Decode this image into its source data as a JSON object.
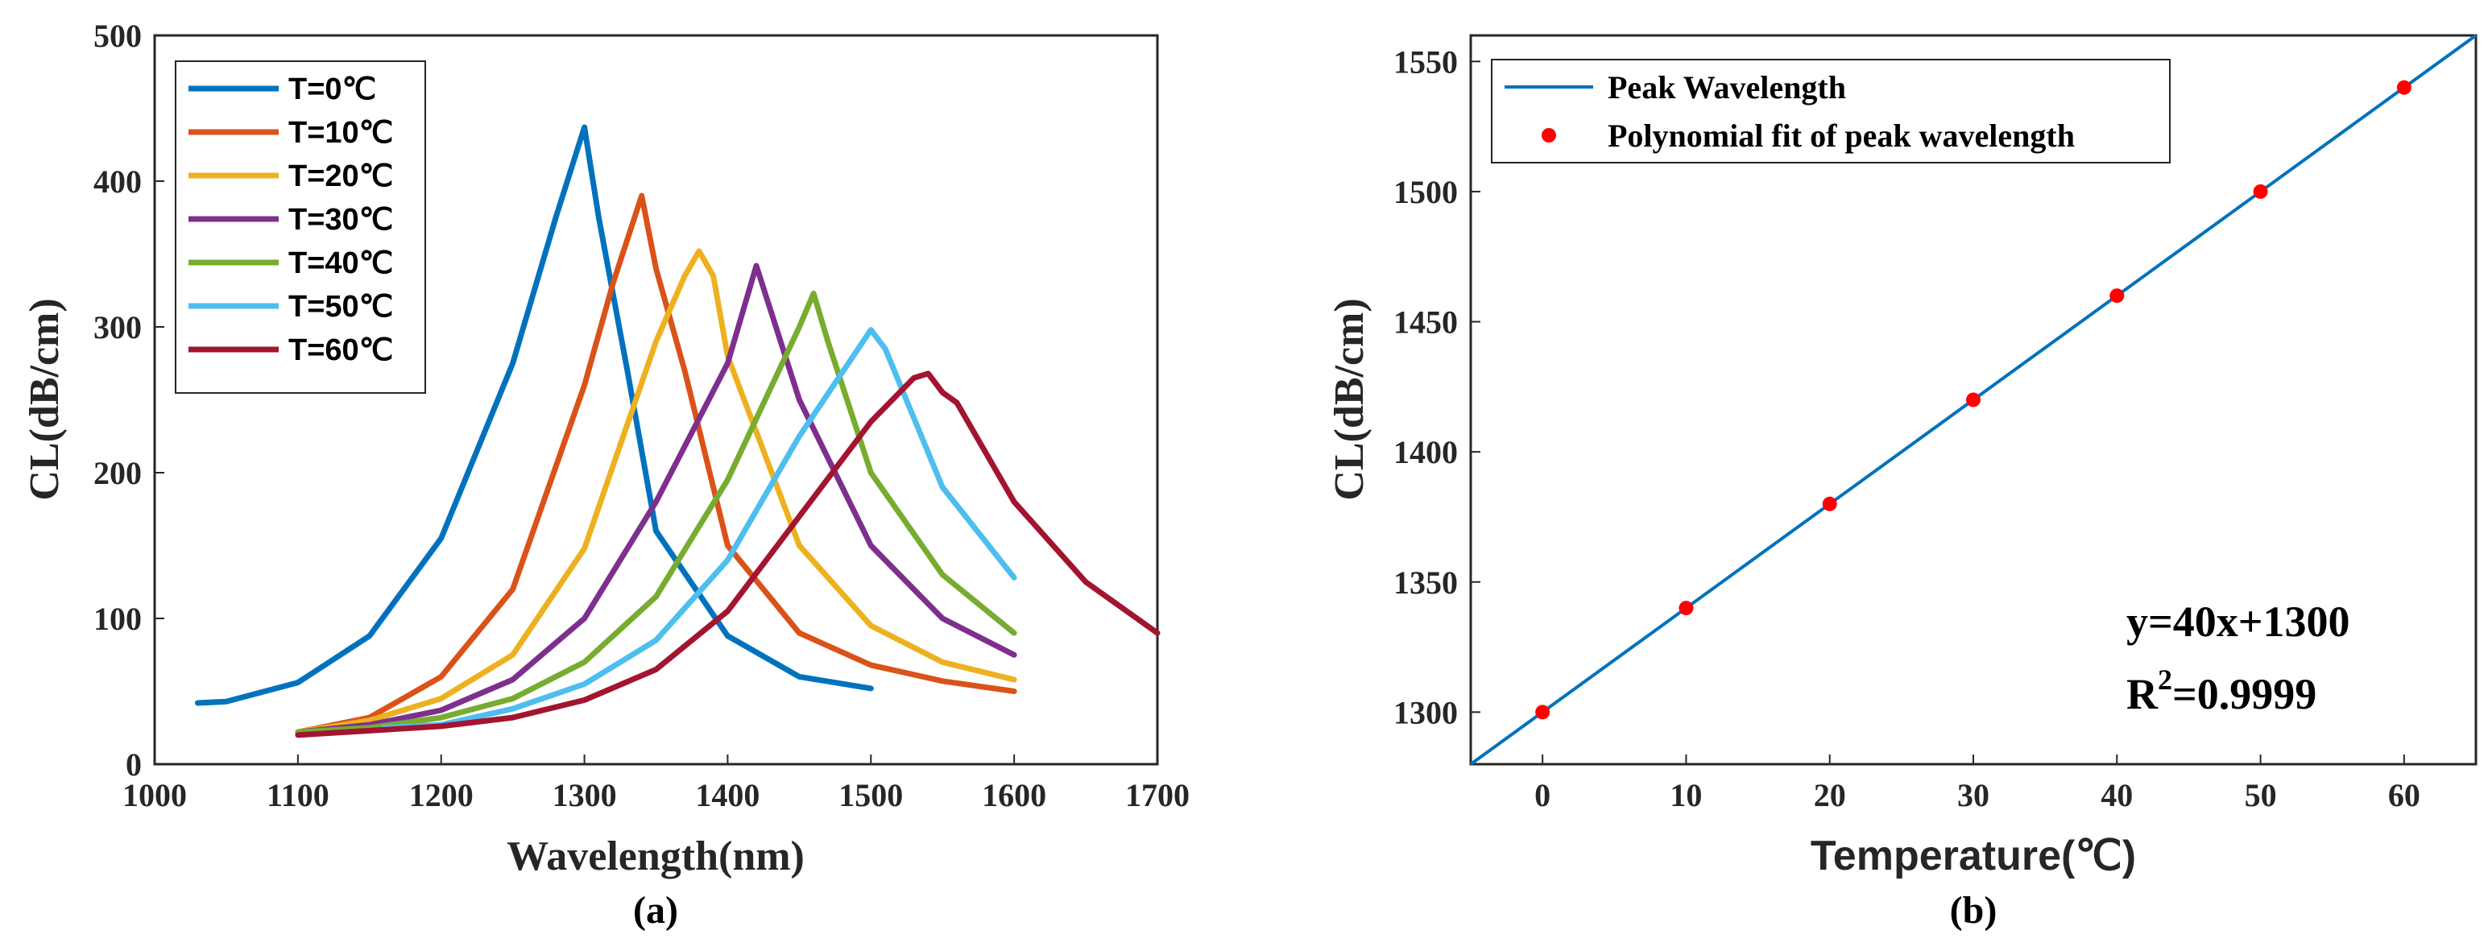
{
  "chart_data": [
    {
      "type": "line",
      "caption": "(a)",
      "xlabel": "Wavelength(nm)",
      "ylabel": "CL(dB/cm)",
      "xlim": [
        1000,
        1700
      ],
      "ylim": [
        0,
        500
      ],
      "xticks": [
        "1000",
        "1100",
        "1200",
        "1300",
        "1400",
        "1500",
        "1600",
        "1700"
      ],
      "yticks": [
        "0",
        "100",
        "200",
        "300",
        "400",
        "500"
      ],
      "legend_position": "top-left",
      "series": [
        {
          "name": "T=0℃",
          "color": "#0072BD",
          "x": [
            1030,
            1050,
            1100,
            1150,
            1200,
            1250,
            1280,
            1300,
            1310,
            1330,
            1350,
            1400,
            1450,
            1500
          ],
          "y": [
            42,
            43,
            56,
            88,
            155,
            275,
            375,
            437,
            375,
            270,
            160,
            88,
            60,
            52
          ]
        },
        {
          "name": "T=10℃",
          "color": "#D95319",
          "x": [
            1100,
            1150,
            1200,
            1250,
            1300,
            1320,
            1340,
            1350,
            1370,
            1400,
            1450,
            1500,
            1550,
            1600
          ],
          "y": [
            22,
            32,
            60,
            120,
            260,
            330,
            390,
            340,
            270,
            150,
            90,
            68,
            57,
            50
          ]
        },
        {
          "name": "T=20℃",
          "color": "#EDB120",
          "x": [
            1100,
            1150,
            1200,
            1250,
            1300,
            1350,
            1370,
            1380,
            1390,
            1400,
            1450,
            1500,
            1550,
            1600
          ],
          "y": [
            22,
            30,
            45,
            75,
            148,
            290,
            335,
            352,
            335,
            280,
            150,
            95,
            70,
            58
          ]
        },
        {
          "name": "T=30℃",
          "color": "#7E2F8E",
          "x": [
            1100,
            1150,
            1200,
            1250,
            1300,
            1350,
            1400,
            1420,
            1450,
            1500,
            1550,
            1600
          ],
          "y": [
            22,
            27,
            37,
            58,
            100,
            180,
            275,
            342,
            250,
            150,
            100,
            75
          ]
        },
        {
          "name": "T=40℃",
          "color": "#77AC30",
          "x": [
            1100,
            1150,
            1200,
            1250,
            1300,
            1350,
            1400,
            1450,
            1460,
            1470,
            1500,
            1550,
            1600
          ],
          "y": [
            22,
            25,
            32,
            45,
            70,
            115,
            195,
            300,
            323,
            290,
            200,
            130,
            90
          ]
        },
        {
          "name": "T=50℃",
          "color": "#4DBEEE",
          "x": [
            1160,
            1200,
            1250,
            1300,
            1350,
            1400,
            1450,
            1500,
            1510,
            1550,
            1600
          ],
          "y": [
            25,
            27,
            38,
            55,
            85,
            140,
            225,
            298,
            285,
            190,
            128
          ]
        },
        {
          "name": "T=60℃",
          "color": "#A2142F",
          "x": [
            1100,
            1150,
            1200,
            1250,
            1300,
            1350,
            1400,
            1450,
            1500,
            1530,
            1540,
            1550,
            1560,
            1600,
            1650,
            1700
          ],
          "y": [
            20,
            23,
            26,
            32,
            44,
            65,
            105,
            170,
            235,
            265,
            268,
            255,
            248,
            180,
            125,
            90
          ]
        }
      ]
    },
    {
      "type": "scatter",
      "caption": "(b)",
      "xlabel": "Temperature(℃)",
      "ylabel": "CL(dB/cm)",
      "xlim": [
        -5,
        65
      ],
      "ylim": [
        1280,
        1560
      ],
      "xticks": [
        "0",
        "10",
        "20",
        "30",
        "40",
        "50",
        "60"
      ],
      "yticks": [
        "1300",
        "1350",
        "1400",
        "1450",
        "1500",
        "1550"
      ],
      "legend_position": "top-left",
      "line": {
        "name": "Peak Wavelength",
        "color": "#0072BD",
        "slope": 40,
        "intercept": 1300
      },
      "points": {
        "name": "Polynomial fit of peak wavelength",
        "color": "#FF0000",
        "x": [
          0,
          10,
          20,
          30,
          40,
          50,
          60
        ],
        "y": [
          1300,
          1340,
          1380,
          1420,
          1460,
          1500,
          1540
        ]
      },
      "annotation": {
        "equation": "y=40x+1300",
        "r2_prefix": "R",
        "r2_sup": "2",
        "r2_value": "=0.9999"
      }
    }
  ]
}
